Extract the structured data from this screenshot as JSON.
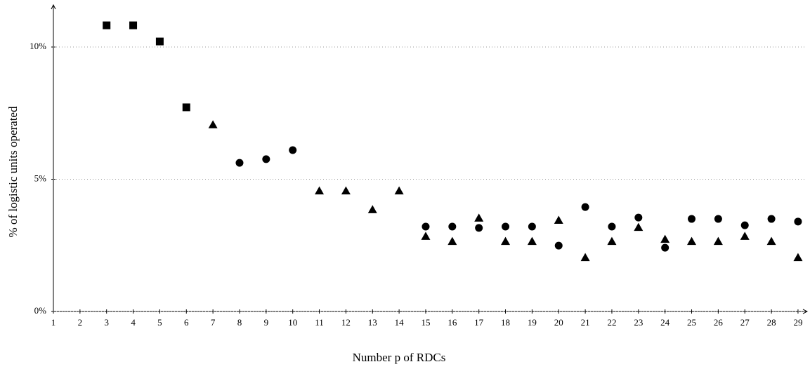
{
  "chart_data": {
    "type": "scatter",
    "xlabel": "Number p of RDCs",
    "ylabel": "% of logistic units operated",
    "xlim": [
      1,
      29.3
    ],
    "ylim": [
      0,
      11.6
    ],
    "xticks": [
      1,
      2,
      3,
      4,
      5,
      6,
      7,
      8,
      9,
      10,
      11,
      12,
      13,
      14,
      15,
      16,
      17,
      18,
      19,
      20,
      21,
      22,
      23,
      24,
      25,
      26,
      27,
      28,
      29
    ],
    "yticks": [
      {
        "value": 0,
        "label": "0%"
      },
      {
        "value": 5,
        "label": "5%"
      },
      {
        "value": 10,
        "label": "10%"
      }
    ],
    "grid": true,
    "series": [
      {
        "marker": "square",
        "color": "#000000",
        "x": [
          3,
          4,
          5,
          6
        ],
        "values": [
          10.82,
          10.82,
          10.21,
          7.72
        ]
      },
      {
        "marker": "triangle",
        "color": "#000000",
        "x": [
          7,
          11,
          12,
          13,
          14,
          15,
          16,
          17,
          18,
          19,
          20,
          21,
          22,
          23,
          24,
          25,
          26,
          27,
          28,
          29
        ],
        "values": [
          7.06,
          4.56,
          4.56,
          3.85,
          4.56,
          2.84,
          2.65,
          3.53,
          2.65,
          2.65,
          3.45,
          2.04,
          2.65,
          3.18,
          2.73,
          2.65,
          2.65,
          2.84,
          2.65,
          2.04
        ]
      },
      {
        "marker": "circle",
        "color": "#000000",
        "x": [
          8,
          9,
          10,
          15,
          16,
          17,
          18,
          19,
          20,
          21,
          22,
          23,
          24,
          25,
          26,
          27,
          28,
          29
        ],
        "values": [
          5.62,
          5.76,
          6.1,
          3.21,
          3.21,
          3.16,
          3.21,
          3.21,
          2.49,
          3.95,
          3.21,
          3.55,
          2.41,
          3.5,
          3.5,
          3.26,
          3.5,
          3.4
        ]
      }
    ]
  }
}
